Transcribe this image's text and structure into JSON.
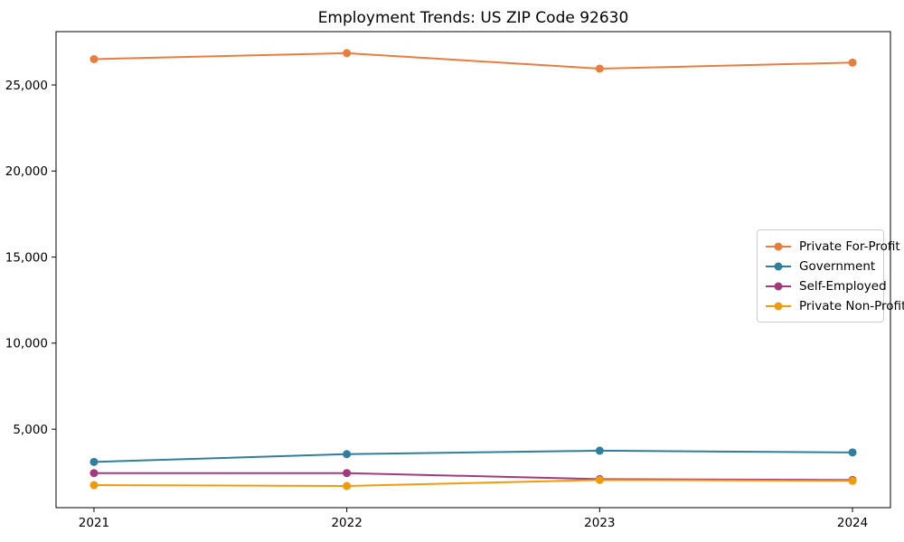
{
  "chart_data": {
    "type": "line",
    "title": "Employment Trends: US ZIP Code 92630",
    "x_labels": [
      "2021",
      "2022",
      "2023",
      "2024"
    ],
    "x": [
      2021,
      2022,
      2023,
      2024
    ],
    "series": [
      {
        "name": "Private For-Profit",
        "color": "#e87d3d",
        "values": [
          26500,
          26850,
          25950,
          26300
        ]
      },
      {
        "name": "Government",
        "color": "#2f7e9e",
        "values": [
          3100,
          3550,
          3750,
          3650
        ]
      },
      {
        "name": "Self-Employed",
        "color": "#a23a7d",
        "values": [
          2450,
          2450,
          2100,
          2050
        ]
      },
      {
        "name": "Private Non-Profit",
        "color": "#f09b0d",
        "values": [
          1750,
          1700,
          2050,
          2000
        ]
      }
    ],
    "yticks": [
      5000,
      10000,
      15000,
      20000,
      25000
    ],
    "ytick_labels": [
      "5,000",
      "10,000",
      "15,000",
      "20,000",
      "25,000"
    ],
    "ylim": [
      440,
      28100
    ],
    "xlim": [
      2020.85,
      2024.15
    ],
    "grid": false,
    "legend_position": "center-right",
    "axis_color": "#000000",
    "background_color": "#ffffff"
  }
}
